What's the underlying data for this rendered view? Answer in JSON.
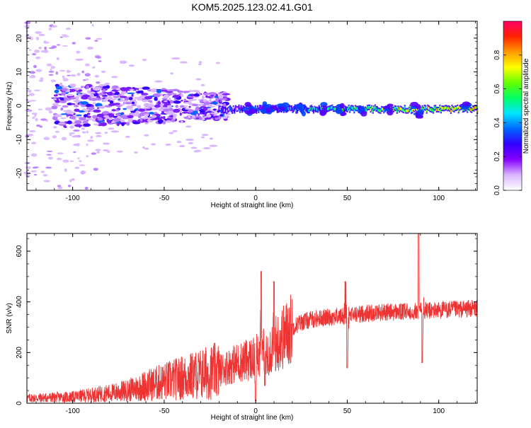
{
  "title": "KOM5.2025.123.02.41.G01",
  "chart_data": [
    {
      "type": "heatmap",
      "xlabel": "Height of straight line (km)",
      "ylabel": "Frequency (Hz)",
      "xlim": [
        -125,
        121
      ],
      "ylim": [
        -25,
        25
      ],
      "xticks": [
        -100,
        -50,
        0,
        50,
        100
      ],
      "yticks": [
        -20,
        -10,
        0,
        10,
        20
      ],
      "colorbar": {
        "label": "Normalized spectral amplitude",
        "range": [
          0,
          1
        ],
        "ticks": [
          "0.0",
          "0.2",
          "0.4",
          "0.6",
          "0.8"
        ],
        "colors": [
          "#ffffff",
          "#d9b6ff",
          "#8800ff",
          "#3300ff",
          "#0066ff",
          "#00e5ff",
          "#00ff66",
          "#66ff00",
          "#ffff00",
          "#ff9900",
          "#ff2200",
          "#ff0066"
        ]
      },
      "features": {
        "ridge_frequency_hz": -1,
        "ridge_x_range_km": [
          -20,
          121
        ],
        "noisy_region_x_km": [
          -125,
          -20
        ],
        "noisy_region_freq_hz": [
          -5,
          5
        ]
      }
    },
    {
      "type": "line",
      "xlabel": "Height of straight line (km)",
      "ylabel": "SNR (v/v)",
      "xlim": [
        -125,
        121
      ],
      "ylim": [
        0,
        670
      ],
      "xticks": [
        -100,
        -50,
        0,
        50,
        100
      ],
      "yticks": [
        0,
        200,
        400,
        600
      ],
      "color": "#ee3333",
      "trend": {
        "x": [
          -125,
          -100,
          -80,
          -70,
          -60,
          -50,
          -40,
          -30,
          -20,
          -10,
          0,
          5,
          10,
          15,
          20,
          25,
          30,
          40,
          50,
          60,
          70,
          80,
          85,
          90,
          95,
          100,
          110,
          121
        ],
        "y": [
          20,
          25,
          40,
          50,
          70,
          85,
          100,
          115,
          130,
          160,
          180,
          200,
          230,
          260,
          300,
          320,
          330,
          340,
          345,
          355,
          360,
          360,
          362,
          365,
          365,
          368,
          370,
          375
        ]
      },
      "spikes": [
        {
          "x": 3,
          "y": 520
        },
        {
          "x": 5,
          "y": 70
        },
        {
          "x": 10,
          "y": 480
        },
        {
          "x": 0,
          "y": 10
        },
        {
          "x": 49,
          "y": 480
        },
        {
          "x": 50,
          "y": 140
        },
        {
          "x": 89,
          "y": 670
        },
        {
          "x": 91,
          "y": 610
        },
        {
          "x": 91,
          "y": 160
        }
      ]
    }
  ]
}
